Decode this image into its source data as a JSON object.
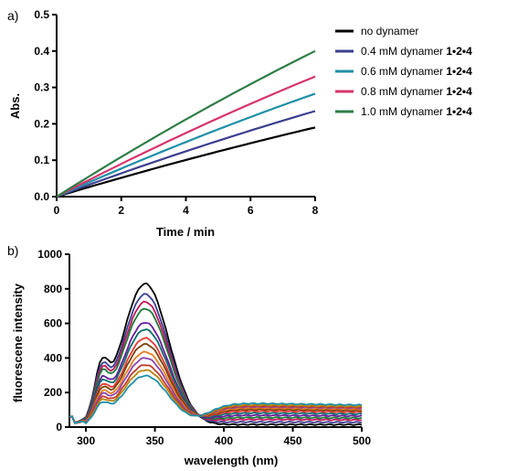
{
  "chart_data": [
    {
      "type": "line",
      "panel_label": "a)",
      "xlabel": "Time / min",
      "ylabel": "Abs.",
      "xlim": [
        0,
        8
      ],
      "ylim": [
        0,
        0.5
      ],
      "xticks": [
        "0",
        "2",
        "4",
        "6",
        "8"
      ],
      "yticks": [
        "0.0",
        "0.1",
        "0.2",
        "0.3",
        "0.4",
        "0.5"
      ],
      "legend_position": "right",
      "series": [
        {
          "name": "no dynamer",
          "name_suffix": "",
          "color": "#000000",
          "x": [
            0,
            8
          ],
          "y": [
            0,
            0.19
          ]
        },
        {
          "name": "0.4 mM dynamer ",
          "name_suffix": "1•2•4",
          "color": "#3b3f8f",
          "x": [
            0,
            8
          ],
          "y": [
            0,
            0.235
          ]
        },
        {
          "name": "0.6 mM dynamer ",
          "name_suffix": "1•2•4",
          "color": "#1f8fa8",
          "x": [
            0,
            8
          ],
          "y": [
            0,
            0.283
          ]
        },
        {
          "name": "0.8 mM dynamer ",
          "name_suffix": "1•2•4",
          "color": "#d6336c",
          "x": [
            0,
            8
          ],
          "y": [
            0,
            0.33
          ]
        },
        {
          "name": "1.0 mM dynamer ",
          "name_suffix": "1•2•4",
          "color": "#2e7d46",
          "x": [
            0,
            8
          ],
          "y": [
            0,
            0.4
          ]
        }
      ]
    },
    {
      "type": "line",
      "panel_label": "b)",
      "xlabel": "wavelength (nm)",
      "ylabel": "fluorescene intensity",
      "xlim": [
        288,
        500
      ],
      "ylim": [
        0,
        1000
      ],
      "xticks": [
        "300",
        "350",
        "400",
        "450",
        "500"
      ],
      "yticks": [
        "0",
        "200",
        "400",
        "600",
        "800",
        "1000"
      ],
      "x": [
        288,
        295,
        300,
        305,
        310,
        315,
        320,
        325,
        330,
        335,
        340,
        345,
        350,
        355,
        360,
        365,
        370,
        375,
        380,
        385,
        390,
        400,
        410,
        420,
        430,
        440,
        450,
        460,
        470,
        480,
        490,
        500
      ],
      "series": [
        {
          "color": "#000000",
          "peak": 825,
          "tail": 10
        },
        {
          "color": "#3b3f8f",
          "peak": 765,
          "tail": 25
        },
        {
          "color": "#c2185b",
          "peak": 720,
          "tail": 40
        },
        {
          "color": "#1b7a3a",
          "peak": 680,
          "tail": 52
        },
        {
          "color": "#6a1b9a",
          "peak": 600,
          "tail": 65
        },
        {
          "color": "#0b6e6e",
          "peak": 560,
          "tail": 78
        },
        {
          "color": "#e53935",
          "peak": 510,
          "tail": 90
        },
        {
          "color": "#7b3f00",
          "peak": 475,
          "tail": 100
        },
        {
          "color": "#e67e22",
          "peak": 430,
          "tail": 108
        },
        {
          "color": "#8e44ad",
          "peak": 395,
          "tail": 115
        },
        {
          "color": "#c0392b",
          "peak": 355,
          "tail": 120
        },
        {
          "color": "#b8860b",
          "peak": 325,
          "tail": 126
        },
        {
          "color": "#1f8fa8",
          "peak": 292,
          "tail": 135
        }
      ]
    }
  ]
}
